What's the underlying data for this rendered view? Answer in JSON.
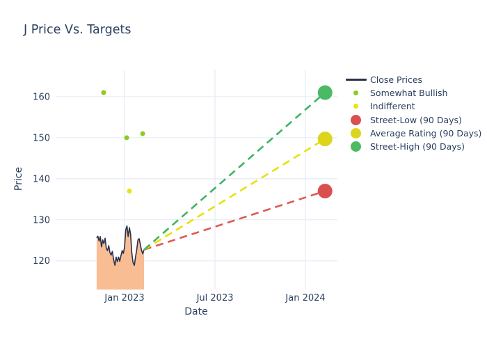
{
  "title": "J Price Vs. Targets",
  "colors": {
    "text": "#2a3f5f",
    "grid": "#e7edf6",
    "background": "#ffffff",
    "close_line": "#28334a",
    "close_fill": "#f9bd93",
    "somewhat_bullish": "#8ccb21",
    "indifferent": "#e8e312",
    "street_low": "#d9504f",
    "average_rating": "#ddd41c",
    "street_high": "#4cba64"
  },
  "chart_data": {
    "type": "line",
    "title": "J Price Vs. Targets",
    "xlabel": "Date",
    "ylabel": "Price",
    "x_axis_unit": "months_since_jan_2023",
    "xlim": [
      -4.57,
      14.12
    ],
    "ylim": [
      113.0,
      166.6
    ],
    "grid": true,
    "legend_position": "top-right-outside",
    "x_ticks": [
      {
        "label": "Jan 2023",
        "value": 0
      },
      {
        "label": "Jul 2023",
        "value": 6
      },
      {
        "label": "Jan 2024",
        "value": 12
      }
    ],
    "y_ticks": [
      120,
      130,
      140,
      150,
      160
    ],
    "series": [
      {
        "name": "Close Prices",
        "type": "line",
        "color": "#28334a",
        "fill": "tozero",
        "fill_color": "#f9bd93",
        "x": [
          -1.85,
          -1.77,
          -1.69,
          -1.61,
          -1.53,
          -1.45,
          -1.37,
          -1.29,
          -1.21,
          -1.13,
          -1.05,
          -0.97,
          -0.89,
          -0.81,
          -0.72,
          -0.64,
          -0.56,
          -0.48,
          -0.4,
          -0.32,
          -0.24,
          -0.16,
          -0.08,
          0.0,
          0.08,
          0.16,
          0.24,
          0.32,
          0.4,
          0.48,
          0.56,
          0.65,
          0.73,
          0.81,
          0.89,
          0.97,
          1.05,
          1.13,
          1.21,
          1.29
        ],
        "y": [
          125.6,
          126.0,
          124.8,
          125.9,
          123.4,
          125.1,
          124.2,
          125.5,
          123.0,
          122.5,
          123.7,
          122.0,
          121.4,
          122.3,
          120.2,
          118.9,
          120.9,
          119.8,
          120.9,
          119.9,
          121.2,
          122.5,
          121.8,
          123.3,
          127.6,
          128.5,
          125.9,
          128.1,
          126.5,
          122.0,
          119.6,
          118.9,
          120.9,
          122.8,
          125.1,
          125.4,
          123.9,
          122.5,
          121.7,
          122.7
        ]
      },
      {
        "name": "Somewhat Bullish",
        "type": "scatter",
        "color": "#8ccb21",
        "marker_size": 7,
        "x": [
          -1.39,
          0.14,
          1.2
        ],
        "y": [
          161,
          150,
          151
        ]
      },
      {
        "name": "Indifferent",
        "type": "scatter",
        "color": "#e8e312",
        "marker_size": 7,
        "x": [
          0.32
        ],
        "y": [
          137
        ]
      },
      {
        "name": "Street-Low (90 Days)",
        "type": "scatter_line",
        "color": "#d9504f",
        "line_color": "#dd5a54",
        "line_dash": "dashed",
        "marker_size": 21,
        "x": [
          1.29,
          13.3
        ],
        "y": [
          122.7,
          137.0
        ]
      },
      {
        "name": "Average Rating (90 Days)",
        "type": "scatter_line",
        "color": "#ddd41c",
        "line_color": "#e8e00c",
        "line_dash": "dashed",
        "marker_size": 21,
        "x": [
          1.29,
          13.3
        ],
        "y": [
          122.7,
          149.7
        ]
      },
      {
        "name": "Street-High (90 Days)",
        "type": "scatter_line",
        "color": "#4cba64",
        "line_color": "#3eb55f",
        "line_dash": "dashed",
        "marker_size": 21,
        "x": [
          1.29,
          13.3
        ],
        "y": [
          122.7,
          161.0
        ]
      }
    ]
  }
}
